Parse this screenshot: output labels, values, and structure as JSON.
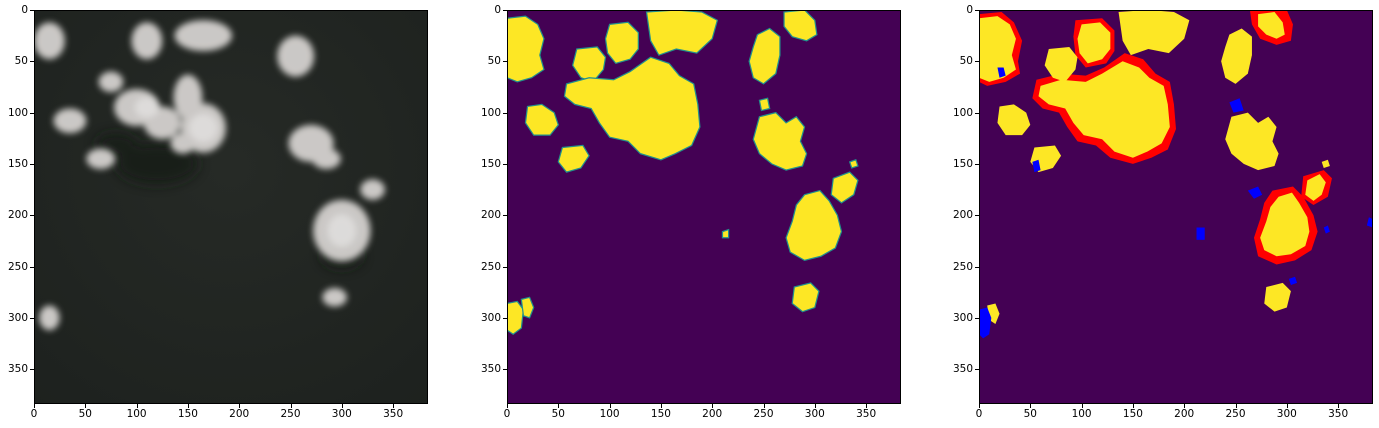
{
  "figure": {
    "panels": [
      {
        "id": "satellite-image",
        "kind": "rgb-photo"
      },
      {
        "id": "cloud-mask-prediction",
        "kind": "mask",
        "background": "#440154",
        "foreground": "#fde725",
        "edge": "#21918c"
      },
      {
        "id": "cloud-mask-error-overlay",
        "kind": "mask",
        "background": "#440154",
        "foreground": "#fde725",
        "false_positive": "#ff0000",
        "false_negative": "#0000ff"
      }
    ],
    "x_ticks": [
      "0",
      "50",
      "100",
      "150",
      "200",
      "250",
      "300",
      "350"
    ],
    "y_ticks": [
      "0",
      "50",
      "100",
      "150",
      "200",
      "250",
      "300",
      "350"
    ],
    "axis_range": [
      0,
      384
    ]
  }
}
